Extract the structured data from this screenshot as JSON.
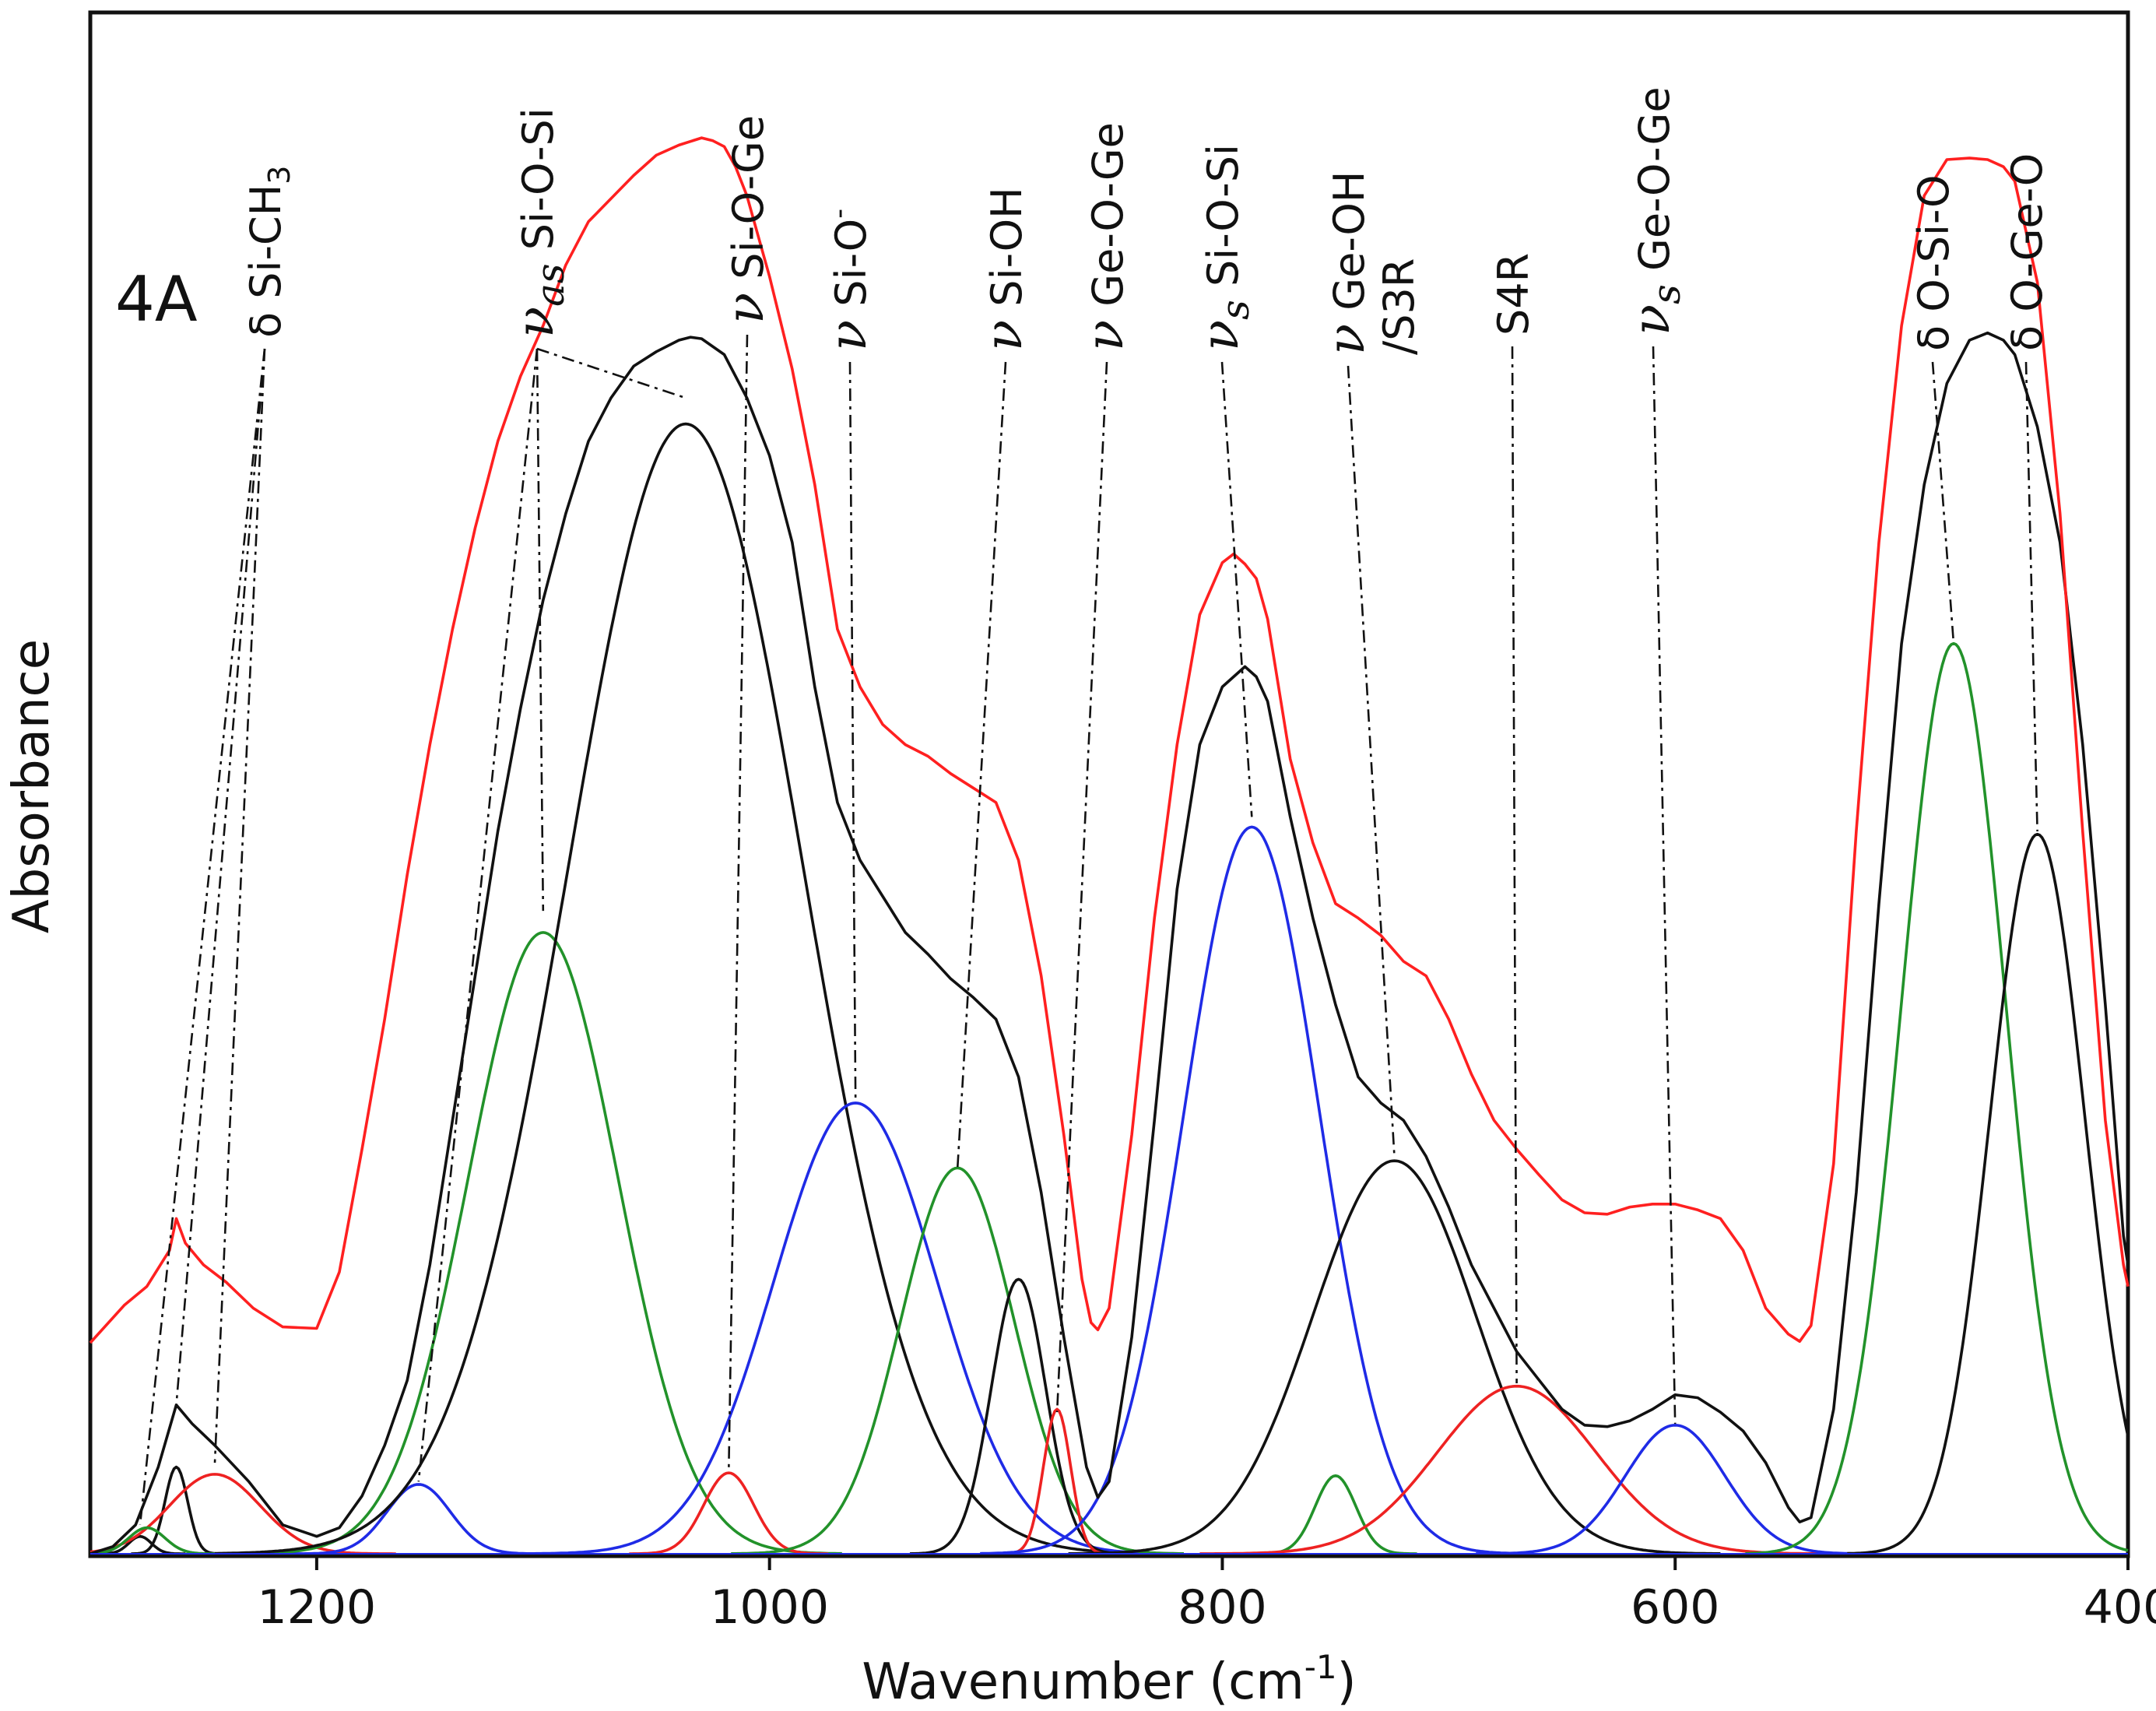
{
  "chart_data": {
    "type": "line",
    "panel_label": "4A",
    "xlabel": "Wavenumber (cm",
    "xlabel_superscript": "-1",
    "xlabel_suffix": ")",
    "ylabel": "Absorbance",
    "xlim": [
      1300,
      400
    ],
    "ylim": [
      0,
      1.0
    ],
    "x_reversed": true,
    "xticks": [
      "1200",
      "1000",
      "800",
      "600",
      "400"
    ],
    "xtick_values": [
      1200,
      1000,
      800,
      600,
      400
    ],
    "grid": false,
    "colors": {
      "measured": "#ff2020",
      "envelope": "#111111",
      "red": "#ee2222",
      "black": "#111111",
      "green": "#22922a",
      "blue": "#1f2be6",
      "leader": "#111111"
    },
    "measured_spectrum": {
      "name": "measured",
      "color": "#ff2020",
      "x": [
        1300,
        1285,
        1275,
        1265,
        1262,
        1258,
        1250,
        1240,
        1228,
        1215,
        1200,
        1190,
        1180,
        1170,
        1160,
        1150,
        1140,
        1130,
        1120,
        1110,
        1100,
        1090,
        1080,
        1070,
        1060,
        1050,
        1040,
        1030,
        1025,
        1020,
        1015,
        1010,
        1000,
        990,
        980,
        970,
        960,
        950,
        940,
        930,
        920,
        910,
        900,
        890,
        880,
        870,
        862,
        858,
        855,
        850,
        840,
        830,
        820,
        810,
        800,
        795,
        790,
        785,
        780,
        770,
        760,
        750,
        740,
        730,
        720,
        710,
        700,
        690,
        680,
        670,
        660,
        650,
        640,
        630,
        620,
        610,
        600,
        590,
        580,
        570,
        560,
        550,
        545,
        540,
        530,
        520,
        510,
        500,
        490,
        480,
        470,
        462,
        455,
        450,
        440,
        430,
        420,
        410,
        402,
        400
      ],
      "y": [
        0.146,
        0.172,
        0.185,
        0.21,
        0.232,
        0.215,
        0.2,
        0.188,
        0.17,
        0.157,
        0.156,
        0.195,
        0.28,
        0.37,
        0.47,
        0.56,
        0.64,
        0.71,
        0.77,
        0.815,
        0.85,
        0.892,
        0.922,
        0.938,
        0.954,
        0.968,
        0.975,
        0.98,
        0.978,
        0.974,
        0.96,
        0.94,
        0.884,
        0.82,
        0.74,
        0.64,
        0.6,
        0.574,
        0.56,
        0.552,
        0.54,
        0.53,
        0.52,
        0.48,
        0.4,
        0.29,
        0.19,
        0.16,
        0.155,
        0.17,
        0.29,
        0.44,
        0.56,
        0.65,
        0.686,
        0.692,
        0.685,
        0.675,
        0.647,
        0.55,
        0.492,
        0.45,
        0.44,
        0.428,
        0.41,
        0.4,
        0.37,
        0.332,
        0.3,
        0.28,
        0.262,
        0.245,
        0.236,
        0.235,
        0.24,
        0.242,
        0.242,
        0.238,
        0.232,
        0.21,
        0.17,
        0.152,
        0.147,
        0.158,
        0.27,
        0.5,
        0.7,
        0.85,
        0.94,
        0.965,
        0.966,
        0.965,
        0.96,
        0.95,
        0.88,
        0.72,
        0.5,
        0.3,
        0.2,
        0.185
      ]
    },
    "envelope": {
      "name": "fitted envelope",
      "color": "#111111",
      "x": [
        1300,
        1290,
        1280,
        1270,
        1262,
        1255,
        1245,
        1230,
        1215,
        1200,
        1190,
        1180,
        1170,
        1160,
        1150,
        1140,
        1130,
        1120,
        1110,
        1100,
        1090,
        1080,
        1070,
        1060,
        1050,
        1040,
        1035,
        1030,
        1020,
        1010,
        1000,
        990,
        980,
        970,
        960,
        950,
        940,
        930,
        920,
        910,
        900,
        890,
        880,
        870,
        860,
        855,
        850,
        840,
        830,
        820,
        810,
        800,
        790,
        785,
        780,
        770,
        760,
        750,
        740,
        730,
        720,
        710,
        700,
        690,
        680,
        670,
        660,
        650,
        640,
        630,
        620,
        610,
        600,
        590,
        580,
        570,
        560,
        550,
        545,
        540,
        530,
        520,
        510,
        500,
        490,
        480,
        470,
        462,
        455,
        450,
        440,
        430,
        420,
        410,
        402,
        400
      ],
      "y": [
        0.0,
        0.005,
        0.02,
        0.06,
        0.103,
        0.09,
        0.075,
        0.05,
        0.02,
        0.012,
        0.018,
        0.04,
        0.075,
        0.12,
        0.2,
        0.3,
        0.4,
        0.5,
        0.585,
        0.66,
        0.72,
        0.77,
        0.8,
        0.822,
        0.832,
        0.84,
        0.842,
        0.841,
        0.83,
        0.8,
        0.76,
        0.7,
        0.6,
        0.52,
        0.48,
        0.455,
        0.43,
        0.415,
        0.398,
        0.385,
        0.37,
        0.33,
        0.25,
        0.15,
        0.06,
        0.039,
        0.05,
        0.15,
        0.3,
        0.46,
        0.56,
        0.6,
        0.614,
        0.607,
        0.59,
        0.51,
        0.44,
        0.38,
        0.33,
        0.312,
        0.3,
        0.275,
        0.24,
        0.2,
        0.17,
        0.14,
        0.12,
        0.1,
        0.089,
        0.088,
        0.092,
        0.1,
        0.11,
        0.108,
        0.098,
        0.085,
        0.063,
        0.032,
        0.022,
        0.025,
        0.1,
        0.25,
        0.45,
        0.63,
        0.74,
        0.81,
        0.84,
        0.845,
        0.84,
        0.83,
        0.78,
        0.7,
        0.56,
        0.38,
        0.22,
        0.2
      ]
    },
    "component_peaks": [
      {
        "color": "#111111",
        "center": 1278,
        "height": 0.012,
        "sigma": 5
      },
      {
        "color": "#111111",
        "center": 1262,
        "height": 0.06,
        "sigma": 5
      },
      {
        "color": "#ee2222",
        "center": 1245,
        "height": 0.055,
        "sigma": 20
      },
      {
        "color": "#22922a",
        "center": 1275,
        "height": 0.018,
        "sigma": 8
      },
      {
        "color": "#1f2be6",
        "center": 1155,
        "height": 0.048,
        "sigma": 14
      },
      {
        "color": "#22922a",
        "center": 1100,
        "height": 0.43,
        "sigma": 33
      },
      {
        "color": "#111111",
        "center": 1037,
        "height": 0.782,
        "sigma": 52
      },
      {
        "color": "#ee2222",
        "center": 1018,
        "height": 0.056,
        "sigma": 11
      },
      {
        "color": "#1f2be6",
        "center": 962,
        "height": 0.312,
        "sigma": 36
      },
      {
        "color": "#22922a",
        "center": 917,
        "height": 0.267,
        "sigma": 25
      },
      {
        "color": "#111111",
        "center": 890,
        "height": 0.19,
        "sigma": 12
      },
      {
        "color": "#ee2222",
        "center": 873,
        "height": 0.1,
        "sigma": 6
      },
      {
        "color": "#1f2be6",
        "center": 787,
        "height": 0.503,
        "sigma": 30
      },
      {
        "color": "#22922a",
        "center": 750,
        "height": 0.054,
        "sigma": 9
      },
      {
        "color": "#111111",
        "center": 724,
        "height": 0.272,
        "sigma": 36
      },
      {
        "color": "#ee2222",
        "center": 670,
        "height": 0.116,
        "sigma": 35
      },
      {
        "color": "#1f2be6",
        "center": 600,
        "height": 0.089,
        "sigma": 22
      },
      {
        "color": "#22922a",
        "center": 477,
        "height": 0.63,
        "sigma": 23
      },
      {
        "color": "#111111",
        "center": 440,
        "height": 0.498,
        "sigma": 21
      }
    ],
    "band_assignments": [
      {
        "mode": "δ",
        "label": "Si-CH",
        "subscript": "3",
        "superscript": "",
        "x_positions": [
          1262,
          1245,
          1278
        ],
        "anchor_wavenumber": 1245
      },
      {
        "mode": "ν",
        "mode_subscript": "as",
        "label": "Si-O-Si",
        "subscript": "",
        "superscript": "",
        "x_positions": [
          1155,
          1100,
          1037
        ],
        "anchor_wavenumber": 1088
      },
      {
        "mode": "ν",
        "mode_subscript": "",
        "label": "Si-O-Ge",
        "subscript": "",
        "superscript": "",
        "x_positions": [
          1018
        ],
        "anchor_wavenumber": 1010
      },
      {
        "mode": "ν",
        "mode_subscript": "",
        "label": "Si-O",
        "subscript": "",
        "superscript": "-",
        "x_positions": [
          962
        ],
        "anchor_wavenumber": 962
      },
      {
        "mode": "ν",
        "mode_subscript": "",
        "label": "Si-OH",
        "subscript": "",
        "superscript": "",
        "x_positions": [
          917
        ],
        "anchor_wavenumber": 888
      },
      {
        "mode": "ν",
        "mode_subscript": "",
        "label": "Ge-O-Ge",
        "subscript": "",
        "superscript": "",
        "x_positions": [
          873
        ],
        "anchor_wavenumber": 865
      },
      {
        "mode": "ν",
        "mode_subscript": "s",
        "label": "Si-O-Si",
        "subscript": "",
        "superscript": "",
        "x_positions": [
          787
        ],
        "anchor_wavenumber": 788
      },
      {
        "mode": "ν",
        "mode_subscript": "",
        "label": "Ge-OH",
        "subscript": "",
        "superscript": "",
        "second_line": "/S3R",
        "x_positions": [
          724
        ],
        "anchor_wavenumber": 745
      },
      {
        "mode": "",
        "mode_subscript": "",
        "label": "S4R",
        "subscript": "",
        "superscript": "",
        "x_positions": [
          670
        ],
        "anchor_wavenumber": 676
      },
      {
        "mode": "ν",
        "mode_subscript": "s",
        "label": "Ge-O-Ge",
        "subscript": "",
        "superscript": "",
        "x_positions": [
          600
        ],
        "anchor_wavenumber": 614
      },
      {
        "mode": "δ",
        "mode_subscript": "",
        "label": "O-Si-O",
        "subscript": "",
        "superscript": "",
        "x_positions": [
          477
        ],
        "anchor_wavenumber": 482
      },
      {
        "mode": "δ",
        "mode_subscript": "",
        "label": "O-Ge-O",
        "subscript": "",
        "superscript": "",
        "x_positions": [
          440
        ],
        "anchor_wavenumber": 442
      }
    ]
  }
}
